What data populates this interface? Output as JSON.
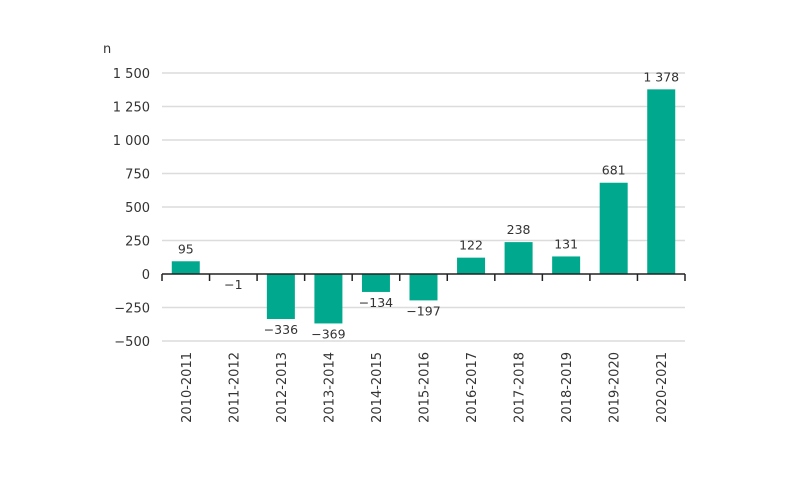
{
  "chart_data": {
    "type": "bar",
    "ylabel": "n",
    "categories": [
      "2010-2011",
      "2011-2012",
      "2012-2013",
      "2013-2014",
      "2014-2015",
      "2015-2016",
      "2016-2017",
      "2017-2018",
      "2018-2019",
      "2019-2020",
      "2020-2021"
    ],
    "values": [
      95,
      -1,
      -336,
      -369,
      -134,
      -197,
      122,
      238,
      131,
      681,
      1378
    ],
    "value_labels": [
      "95",
      "−1",
      "−336",
      "−369",
      "−134",
      "−197",
      "122",
      "238",
      "131",
      "681",
      "1 378"
    ],
    "ylim": [
      -500,
      1500
    ],
    "yticks": [
      -500,
      -250,
      0,
      250,
      500,
      750,
      1000,
      1250,
      1500
    ],
    "ytick_labels": [
      "−500",
      "−250",
      "0",
      "250",
      "500",
      "750",
      "1 000",
      "1 250",
      "1 500"
    ],
    "grid": true,
    "legend": "none",
    "bar_color": "#00a88e"
  }
}
